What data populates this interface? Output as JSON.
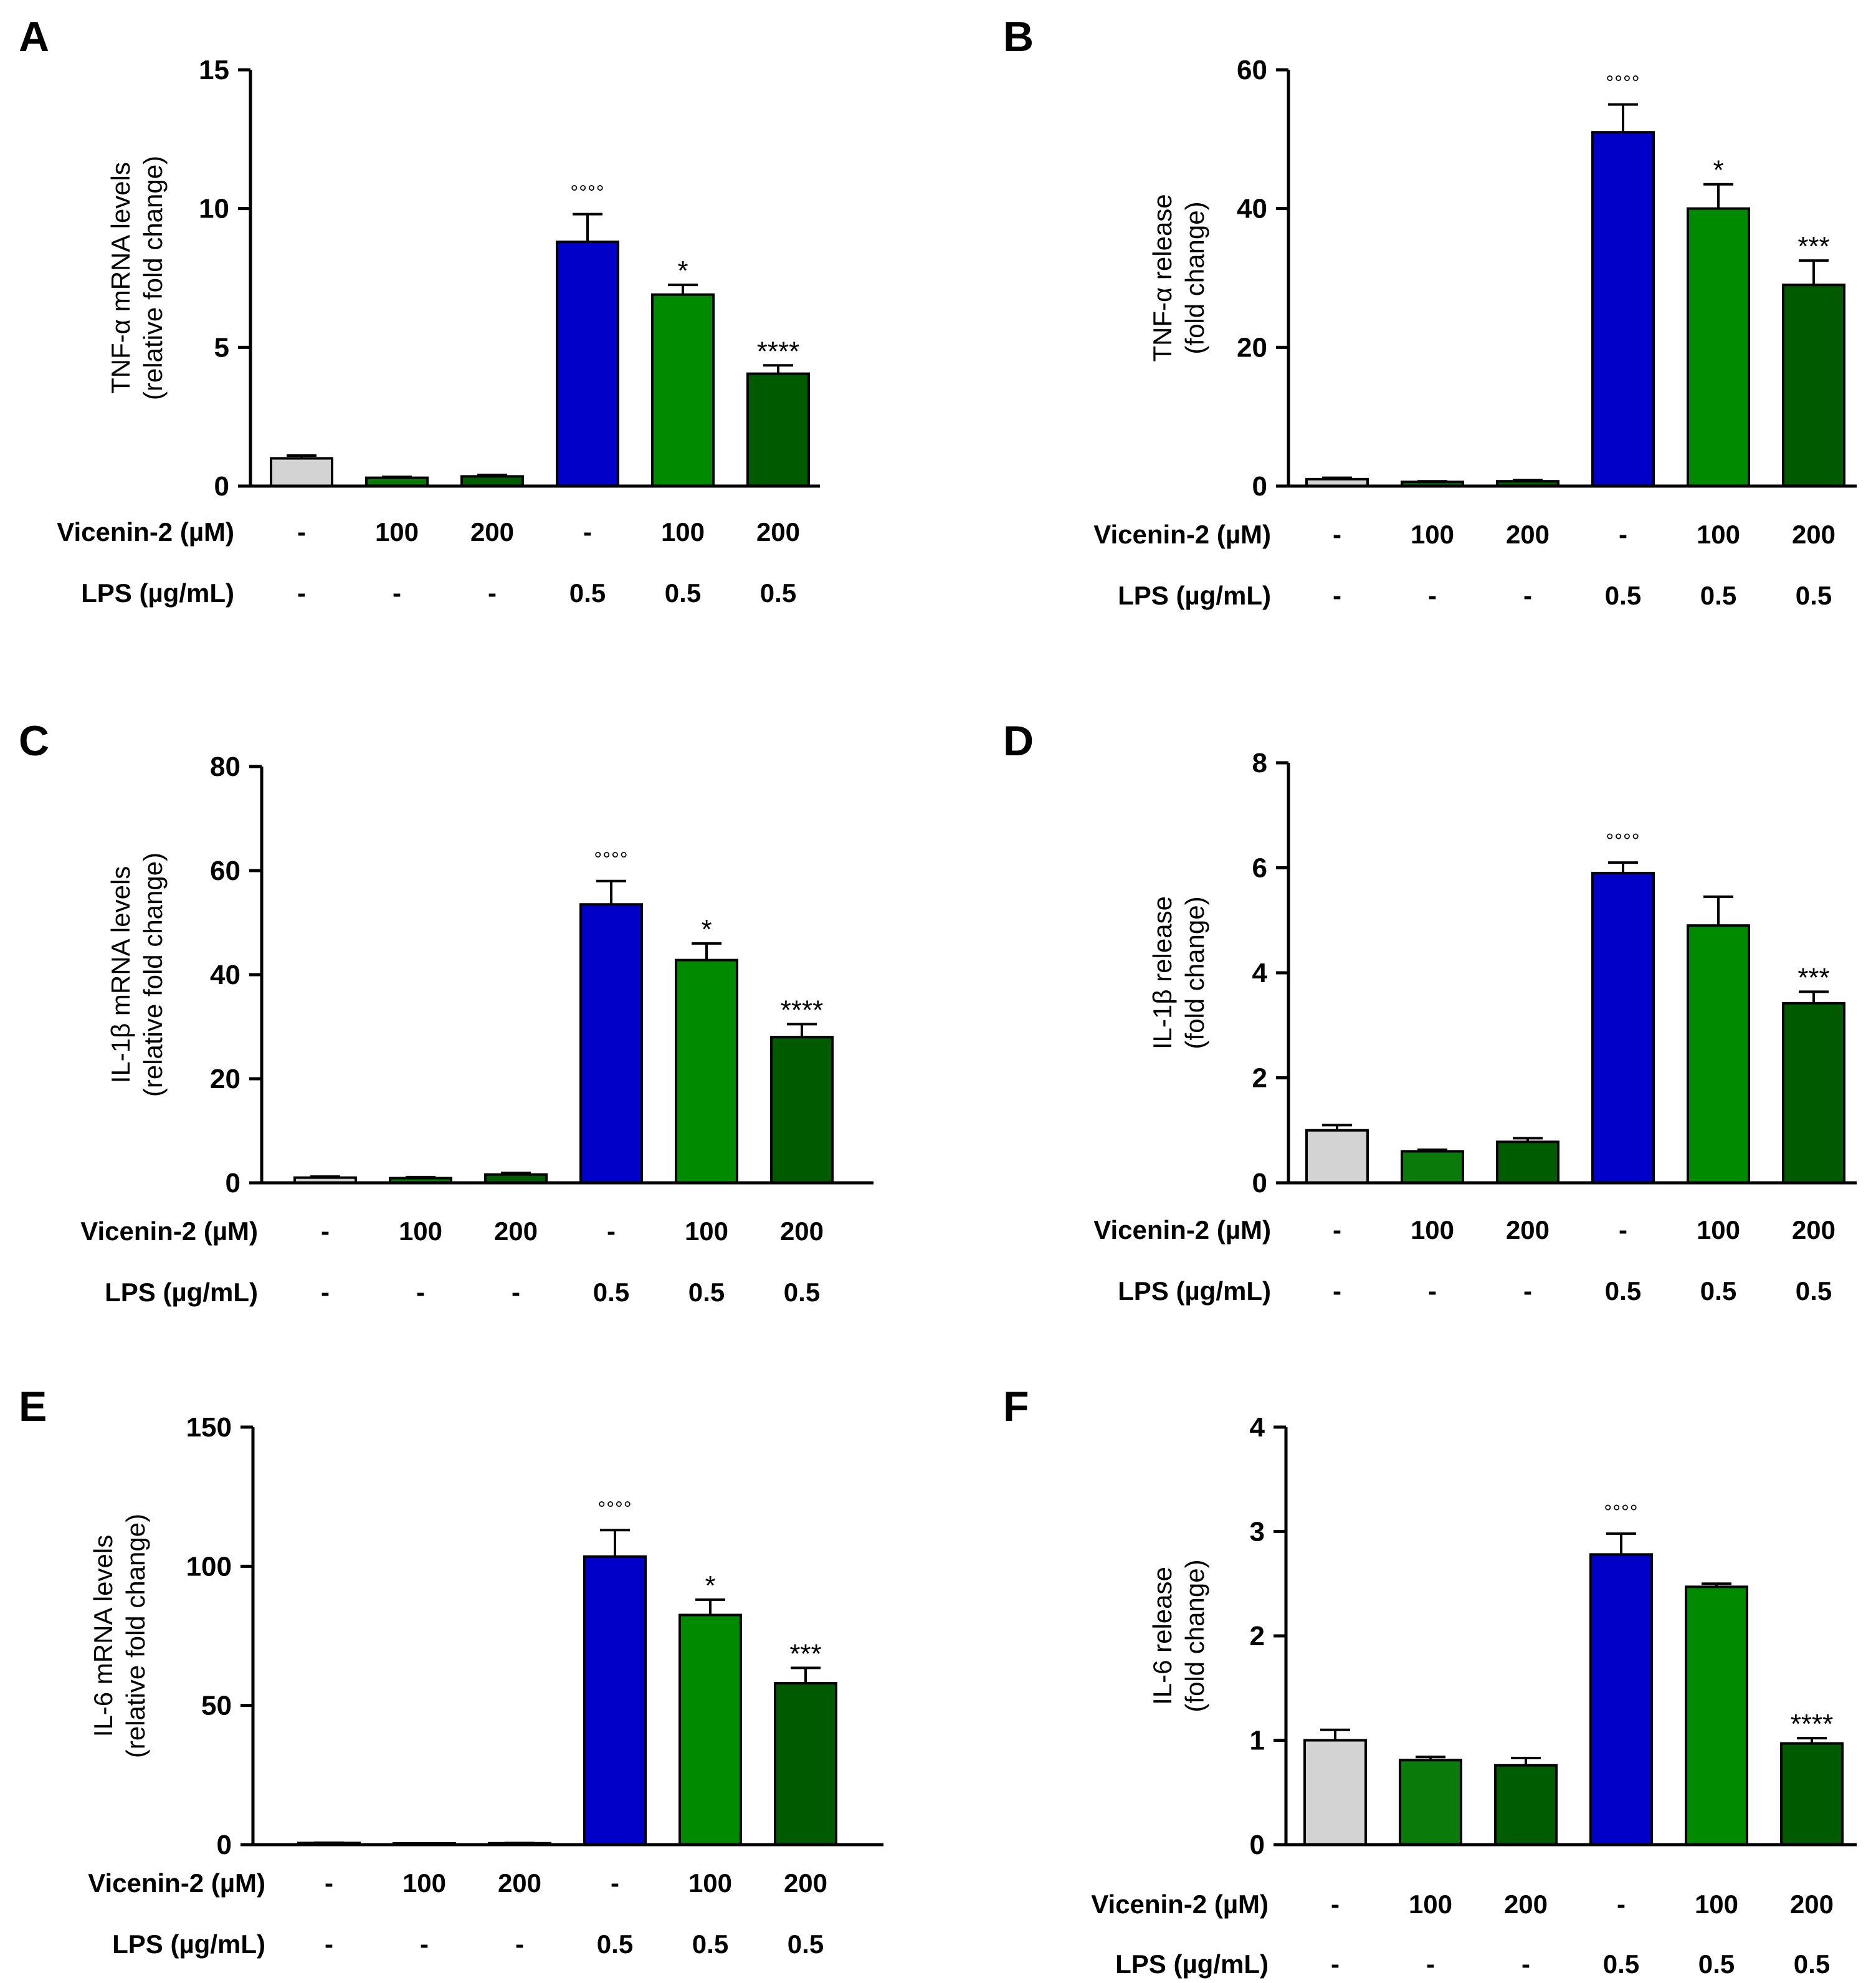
{
  "colors": {
    "control": "#d3d3d3",
    "vicenin_100": "#0a7a0a",
    "vicenin_200": "#005c00",
    "lps": "#0000c8",
    "lps_vicenin_100": "#008a00",
    "lps_vicenin_200": "#005a00"
  },
  "row_labels": {
    "vicenin": "Vicenin-2 (µM)",
    "lps": "LPS (µg/mL)"
  },
  "conditions": {
    "vicenin": [
      "-",
      "100",
      "200",
      "-",
      "100",
      "200"
    ],
    "lps": [
      "-",
      "-",
      "-",
      "0.5",
      "0.5",
      "0.5"
    ]
  },
  "chart_data": [
    {
      "panel": "A",
      "type": "bar",
      "ylabel_line1": "TNF-α mRNA levels",
      "ylabel_line2": "(relative fold change)",
      "ylim": [
        0,
        15
      ],
      "yticks": [
        "0",
        "5",
        "10",
        "15"
      ],
      "ytick_values": [
        0,
        5,
        10,
        15
      ],
      "values": [
        1.0,
        0.3,
        0.35,
        8.8,
        6.9,
        4.05
      ],
      "errors": [
        0.1,
        0.03,
        0.05,
        1.0,
        0.35,
        0.3
      ],
      "annotations": [
        "",
        "",
        "",
        "°°°°",
        "*",
        "****"
      ]
    },
    {
      "panel": "B",
      "type": "bar",
      "ylabel_line1": "TNF-α release",
      "ylabel_line2": "(fold change)",
      "ylim": [
        0,
        60
      ],
      "yticks": [
        "0",
        "20",
        "40",
        "60"
      ],
      "ytick_values": [
        0,
        20,
        40,
        60
      ],
      "values": [
        1.0,
        0.6,
        0.7,
        51.0,
        40.0,
        29.0
      ],
      "errors": [
        0.2,
        0.1,
        0.15,
        4.0,
        3.5,
        3.5
      ],
      "annotations": [
        "",
        "",
        "",
        "°°°°",
        "*",
        "***"
      ]
    },
    {
      "panel": "C",
      "type": "bar",
      "ylabel_line1": "IL-1β mRNA levels",
      "ylabel_line2": "(relative fold change)",
      "ylim": [
        0,
        80
      ],
      "yticks": [
        "0",
        "20",
        "40",
        "60",
        "80"
      ],
      "ytick_values": [
        0,
        20,
        40,
        60,
        80
      ],
      "values": [
        1.0,
        0.9,
        1.6,
        53.5,
        42.8,
        28.0
      ],
      "errors": [
        0.2,
        0.2,
        0.3,
        4.5,
        3.2,
        2.5
      ],
      "annotations": [
        "",
        "",
        "",
        "°°°°",
        "*",
        "****"
      ]
    },
    {
      "panel": "D",
      "type": "bar",
      "ylabel_line1": "IL-1β release",
      "ylabel_line2": "(fold change)",
      "ylim": [
        0,
        8
      ],
      "yticks": [
        "0",
        "2",
        "4",
        "6",
        "8"
      ],
      "ytick_values": [
        0,
        2,
        4,
        6,
        8
      ],
      "values": [
        1.0,
        0.6,
        0.78,
        5.9,
        4.9,
        3.42
      ],
      "errors": [
        0.1,
        0.03,
        0.07,
        0.2,
        0.55,
        0.22
      ],
      "annotations": [
        "",
        "",
        "",
        "°°°°",
        "",
        "***"
      ]
    },
    {
      "panel": "E",
      "type": "bar",
      "ylabel_line1": "IL-6 mRNA levels",
      "ylabel_line2": "(relative fold change)",
      "ylim": [
        0,
        150
      ],
      "yticks": [
        "0",
        "50",
        "100",
        "150"
      ],
      "ytick_values": [
        0,
        50,
        100,
        150
      ],
      "values": [
        0.6,
        0.3,
        0.5,
        103.5,
        82.5,
        58.0
      ],
      "errors": [
        0.1,
        0.05,
        0.1,
        9.5,
        5.5,
        5.5
      ],
      "annotations": [
        "",
        "",
        "",
        "°°°°",
        "*",
        "***"
      ]
    },
    {
      "panel": "F",
      "type": "bar",
      "ylabel_line1": "IL-6 release",
      "ylabel_line2": "(fold change)",
      "ylim": [
        0,
        4
      ],
      "yticks": [
        "0",
        "1",
        "2",
        "3",
        "4"
      ],
      "ytick_values": [
        0,
        1,
        2,
        3,
        4
      ],
      "values": [
        1.0,
        0.81,
        0.76,
        2.78,
        2.47,
        0.97
      ],
      "errors": [
        0.1,
        0.03,
        0.07,
        0.2,
        0.03,
        0.05
      ],
      "annotations": [
        "",
        "",
        "",
        "°°°°",
        "",
        "****"
      ]
    }
  ]
}
